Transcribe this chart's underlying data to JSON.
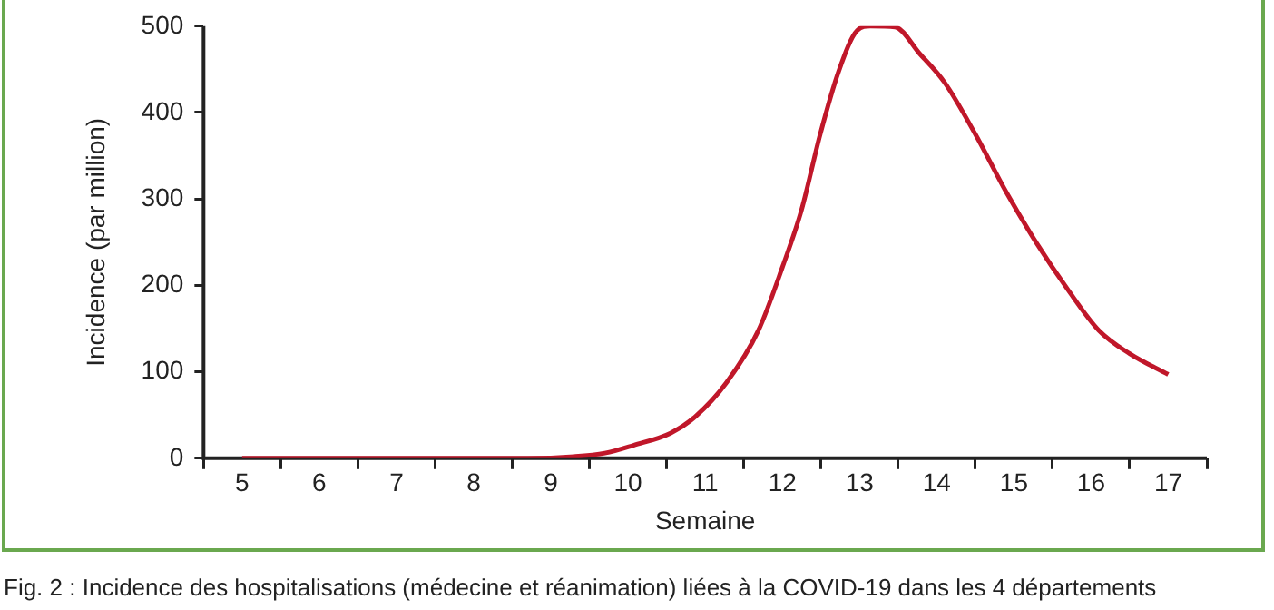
{
  "chart_data": {
    "type": "line",
    "xlabel": "Semaine",
    "ylabel": "Incidence (par million)",
    "xlim": [
      4.5,
      17.5
    ],
    "xticks": [
      {
        "value": 4.5,
        "label": null
      },
      {
        "value": 5,
        "label": "5"
      },
      {
        "value": 5.5,
        "label": null
      },
      {
        "value": 6,
        "label": "6"
      },
      {
        "value": 6.5,
        "label": null
      },
      {
        "value": 7,
        "label": "7"
      },
      {
        "value": 7.5,
        "label": null
      },
      {
        "value": 8,
        "label": "8"
      },
      {
        "value": 8.5,
        "label": null
      },
      {
        "value": 9,
        "label": "9"
      },
      {
        "value": 9.5,
        "label": null
      },
      {
        "value": 10,
        "label": "10"
      },
      {
        "value": 10.5,
        "label": null
      },
      {
        "value": 11,
        "label": "11"
      },
      {
        "value": 11.5,
        "label": null
      },
      {
        "value": 12,
        "label": "12"
      },
      {
        "value": 12.5,
        "label": null
      },
      {
        "value": 13,
        "label": "13"
      },
      {
        "value": 13.5,
        "label": null
      },
      {
        "value": 14,
        "label": "14"
      },
      {
        "value": 14.5,
        "label": null
      },
      {
        "value": 15,
        "label": "15"
      },
      {
        "value": 15.5,
        "label": null
      },
      {
        "value": 16,
        "label": "16"
      },
      {
        "value": 16.5,
        "label": null
      },
      {
        "value": 17,
        "label": "17"
      },
      {
        "value": 17.5,
        "label": null
      }
    ],
    "ylim": [
      0,
      500
    ],
    "yticks": [
      0,
      100,
      200,
      300,
      400,
      500
    ],
    "grid": false,
    "legend": false,
    "marker": "none",
    "line_style": "solid",
    "series": [
      {
        "color": "#c0172a",
        "x": [
          5,
          6,
          7,
          8,
          8.7,
          9.3,
          9.7,
          10.07,
          10.55,
          10.87,
          11.28,
          11.69,
          12.0,
          12.25,
          12.49,
          12.73,
          12.97,
          13.14,
          13.46,
          13.78,
          14.1,
          14.5,
          14.9,
          15.3,
          15.7,
          16.1,
          16.5,
          17.0
        ],
        "values": [
          0,
          0,
          0,
          0,
          0,
          2,
          6,
          15,
          29,
          48,
          88,
          148,
          221,
          288,
          375,
          448,
          495,
          500,
          499,
          468,
          435,
          375,
          308,
          248,
          195,
          148,
          121,
          97
        ]
      }
    ],
    "annotations": [
      "Fig. 2 : Incidence des hospitalisations (médecine et réanimation) liées à la COVID-19 dans les 4 départements"
    ]
  }
}
